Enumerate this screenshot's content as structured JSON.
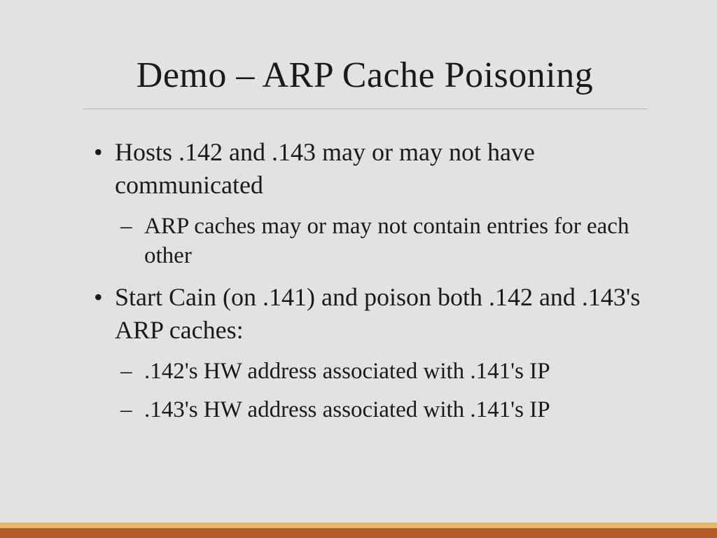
{
  "slide": {
    "title": "Demo – ARP Cache Poisoning",
    "bullets": {
      "b1": "Hosts .142 and .143 may or may not have communicated",
      "b1s1": "ARP caches may or may not contain entries for each other",
      "b2": "Start Cain (on .141) and poison both .142 and .143's ARP caches:",
      "b2s1": ".142's HW address associated with .141's IP",
      "b2s2": ".143's HW address associated with .141's IP"
    }
  },
  "style": {
    "background_color": "#e2e3e1",
    "text_color": "#1a1a1a",
    "divider_color": "#b8b9b7",
    "footer_top_color": "#e9b968",
    "footer_bottom_color": "#b65a28",
    "title_fontsize": 52,
    "body_fontsize": 36,
    "sub_fontsize": 33,
    "font_family": "Times New Roman"
  }
}
